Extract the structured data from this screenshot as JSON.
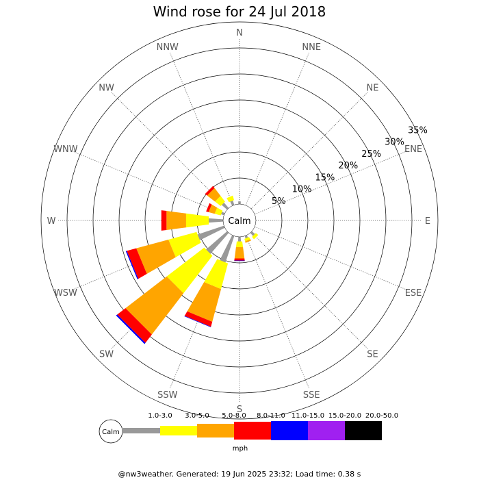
{
  "title": "Wind rose for 24 Jul 2018",
  "footer": "@nw3weather. Generated: 19 Jun 2025 23:32; Load time: 0.38 s",
  "chart_data": {
    "type": "wind-rose",
    "title": "Wind rose for 24 Jul 2018",
    "directions": [
      "N",
      "NNE",
      "NE",
      "ENE",
      "E",
      "ESE",
      "SE",
      "SSE",
      "S",
      "SSW",
      "SW",
      "WSW",
      "W",
      "WNW",
      "NW",
      "NNW"
    ],
    "radial_ticks": [
      "5%",
      "10%",
      "15%",
      "20%",
      "25%",
      "30%",
      "35%"
    ],
    "radial_tick_values": [
      5,
      10,
      15,
      20,
      25,
      30,
      35
    ],
    "calm_label": "Calm",
    "unit": "mph",
    "speed_bins": [
      {
        "label": "1.0-3.0",
        "color": "#999999"
      },
      {
        "label": "3.0-5.0",
        "color": "#ffff00"
      },
      {
        "label": "5.0-8.0",
        "color": "#ffa500"
      },
      {
        "label": "8.0-11.0",
        "color": "#ff0000"
      },
      {
        "label": "11.0-15.0",
        "color": "#0000ff"
      },
      {
        "label": "15.0-20.0",
        "color": "#a020f0"
      },
      {
        "label": "20.0-50.0",
        "color": "#000000"
      }
    ],
    "cumulative_percent": {
      "S": [
        0.9,
        2.0,
        4.2,
        4.6,
        4.7
      ],
      "SSW": [
        5.4,
        10.5,
        17.0,
        18.0,
        18.1
      ],
      "SW": [
        5.4,
        14.5,
        24.5,
        26.5,
        26.8
      ],
      "WSW": [
        5.4,
        11.0,
        17.4,
        19.3,
        19.5
      ],
      "W": [
        2.8,
        7.2,
        11.0,
        12.0
      ],
      "WNW": [
        0.6,
        1.8,
        3.0,
        3.5
      ],
      "NW": [
        1.4,
        2.8,
        4.7,
        5.2
      ],
      "NNW": [
        0.9,
        1.8
      ],
      "N": [
        0.5
      ],
      "SSE": [
        0.5,
        1.0,
        1.3
      ],
      "SE": [
        0.8,
        1.4
      ]
    },
    "legend_position": "bottom",
    "grid": true
  }
}
